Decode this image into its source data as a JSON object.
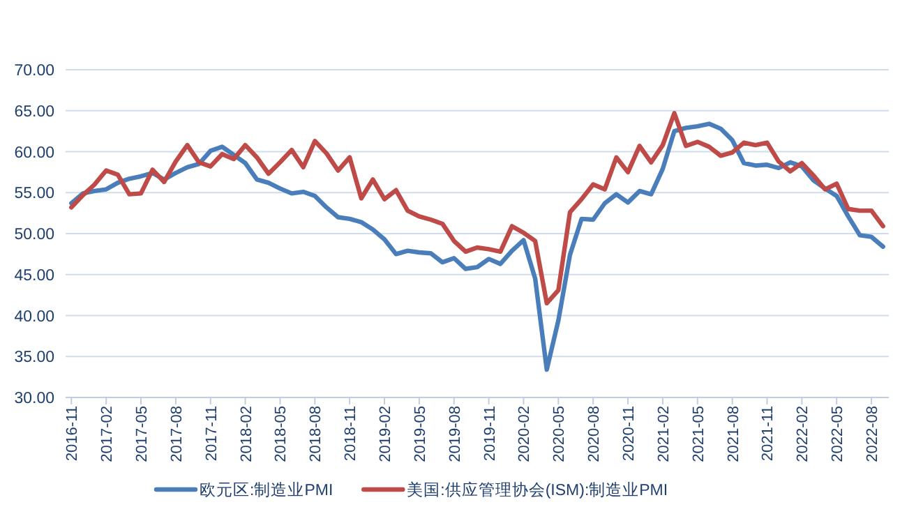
{
  "chart_data": {
    "type": "line",
    "categories": [
      "2016-11",
      null,
      null,
      "2017-02",
      null,
      null,
      "2017-05",
      null,
      null,
      "2017-08",
      null,
      null,
      "2017-11",
      null,
      null,
      "2018-02",
      null,
      null,
      "2018-05",
      null,
      null,
      "2018-08",
      null,
      null,
      "2018-11",
      null,
      null,
      "2019-02",
      null,
      null,
      "2019-05",
      null,
      null,
      "2019-08",
      null,
      null,
      "2019-11",
      null,
      null,
      "2020-02",
      null,
      null,
      "2020-05",
      null,
      null,
      "2020-08",
      null,
      null,
      "2020-11",
      null,
      null,
      "2021-02",
      null,
      null,
      "2021-05",
      null,
      null,
      "2021-08",
      null,
      null,
      "2021-11",
      null,
      null,
      "2022-02",
      null,
      null,
      "2022-05",
      null,
      null,
      "2022-08",
      null
    ],
    "series": [
      {
        "name": "欧元区:制造业PMI",
        "color": "#4a7ebb",
        "values": [
          53.7,
          54.9,
          55.2,
          55.4,
          56.2,
          56.7,
          57.0,
          57.4,
          56.6,
          57.4,
          58.1,
          58.5,
          60.1,
          60.6,
          59.6,
          58.6,
          56.6,
          56.2,
          55.5,
          54.9,
          55.1,
          54.6,
          53.2,
          52.0,
          51.8,
          51.4,
          50.5,
          49.3,
          47.5,
          47.9,
          47.7,
          47.6,
          46.5,
          47.0,
          45.7,
          45.9,
          46.9,
          46.3,
          47.9,
          49.2,
          44.5,
          33.4,
          39.4,
          47.4,
          51.8,
          51.7,
          53.7,
          54.8,
          53.8,
          55.2,
          54.8,
          57.9,
          62.5,
          62.9,
          63.1,
          63.4,
          62.8,
          61.4,
          58.6,
          58.3,
          58.4,
          58.0,
          58.7,
          58.2,
          56.5,
          55.5,
          54.6,
          52.1,
          49.8,
          49.6,
          48.4
        ]
      },
      {
        "name": "美国:供应管理协会(ISM):制造业PMI",
        "color": "#be4b48",
        "values": [
          53.2,
          54.7,
          56.0,
          57.7,
          57.2,
          54.8,
          54.9,
          57.8,
          56.3,
          58.8,
          60.8,
          58.7,
          58.2,
          59.7,
          59.1,
          60.8,
          59.3,
          57.3,
          58.7,
          60.2,
          58.1,
          61.3,
          59.8,
          57.7,
          59.3,
          54.3,
          56.6,
          54.2,
          55.3,
          52.8,
          52.1,
          51.7,
          51.2,
          49.1,
          47.8,
          48.3,
          48.1,
          47.8,
          50.9,
          50.1,
          49.1,
          41.5,
          43.1,
          52.6,
          54.2,
          56.0,
          55.4,
          59.3,
          57.5,
          60.7,
          58.7,
          60.8,
          64.7,
          60.7,
          61.2,
          60.6,
          59.5,
          59.9,
          61.1,
          60.8,
          61.1,
          58.8,
          57.6,
          58.6,
          57.1,
          55.4,
          56.1,
          53.0,
          52.8,
          52.8,
          50.9
        ]
      }
    ],
    "ylim": [
      30,
      70
    ],
    "yticks": [
      {
        "value": 30,
        "label": "30.00"
      },
      {
        "value": 35,
        "label": "35.00"
      },
      {
        "value": 40,
        "label": "40.00"
      },
      {
        "value": 45,
        "label": "45.00"
      },
      {
        "value": 50,
        "label": "50.00"
      },
      {
        "value": 55,
        "label": "55.00"
      },
      {
        "value": 60,
        "label": "60.00"
      },
      {
        "value": 65,
        "label": "65.00"
      },
      {
        "value": 70,
        "label": "70.00"
      }
    ],
    "grid": "y",
    "legend": "bottom",
    "marker": "none",
    "line_style": "solid"
  }
}
